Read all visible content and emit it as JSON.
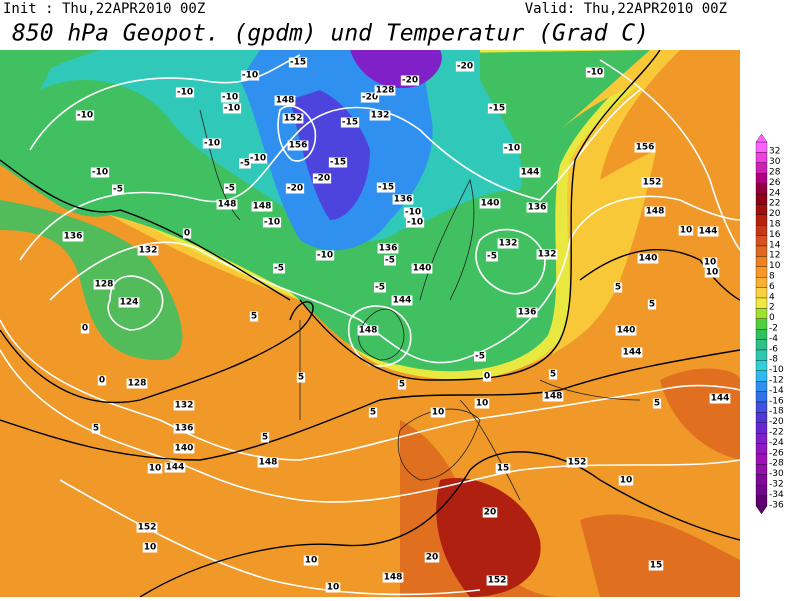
{
  "header": {
    "init": "Init : Thu,22APR2010 00Z",
    "valid": "Valid: Thu,22APR2010 00Z",
    "title": "850 hPa Geopot. (gpdm) und Temperatur (Grad C)"
  },
  "colorbar": {
    "levels": [
      32,
      30,
      28,
      26,
      24,
      22,
      20,
      18,
      16,
      14,
      12,
      10,
      8,
      6,
      4,
      2,
      0,
      -2,
      -4,
      -6,
      -8,
      -10,
      -12,
      -14,
      -16,
      -18,
      -20,
      -22,
      -24,
      -26,
      -28,
      -30,
      -32,
      -34,
      -36
    ],
    "colors": [
      "#ff60ff",
      "#f040e0",
      "#d020b0",
      "#b00080",
      "#900040",
      "#900018",
      "#a01010",
      "#b82010",
      "#c83818",
      "#d85020",
      "#e06820",
      "#f08020",
      "#f89828",
      "#f8b030",
      "#f8d040",
      "#f0e840",
      "#a0e030",
      "#50d040",
      "#30c060",
      "#30c088",
      "#30c8b0",
      "#30d0d8",
      "#30b8f0",
      "#3090f0",
      "#3070e8",
      "#4050e0",
      "#5038d8",
      "#6828d0",
      "#8020c8",
      "#9018c0",
      "#a010b8",
      "#9010a8",
      "#800898",
      "#700888",
      "#600070"
    ]
  },
  "map_labels": [
    -15,
    -20,
    -20,
    -10,
    -10,
    -10,
    -10,
    -20,
    128,
    148,
    -15,
    132,
    -15,
    -10,
    -10,
    -10,
    152,
    -10,
    156,
    -10,
    -15,
    156,
    144,
    -10,
    -5,
    -20,
    -20,
    -15,
    152,
    -5,
    -5,
    148,
    148,
    136,
    140,
    136,
    -10,
    148,
    -10,
    -10,
    0,
    136,
    10,
    144,
    132,
    136,
    132,
    132,
    -10,
    -5,
    -5,
    140,
    10,
    140,
    -5,
    10,
    128,
    -5,
    5,
    124,
    144,
    136,
    5,
    0,
    5,
    140,
    148,
    -5,
    144,
    128,
    5,
    0,
    0,
    5,
    5,
    132,
    148,
    5,
    10,
    10,
    5,
    144,
    136,
    5,
    5,
    140,
    148,
    10,
    144,
    152,
    15,
    10,
    20,
    152,
    10,
    10,
    20,
    15,
    10,
    148,
    152
  ]
}
